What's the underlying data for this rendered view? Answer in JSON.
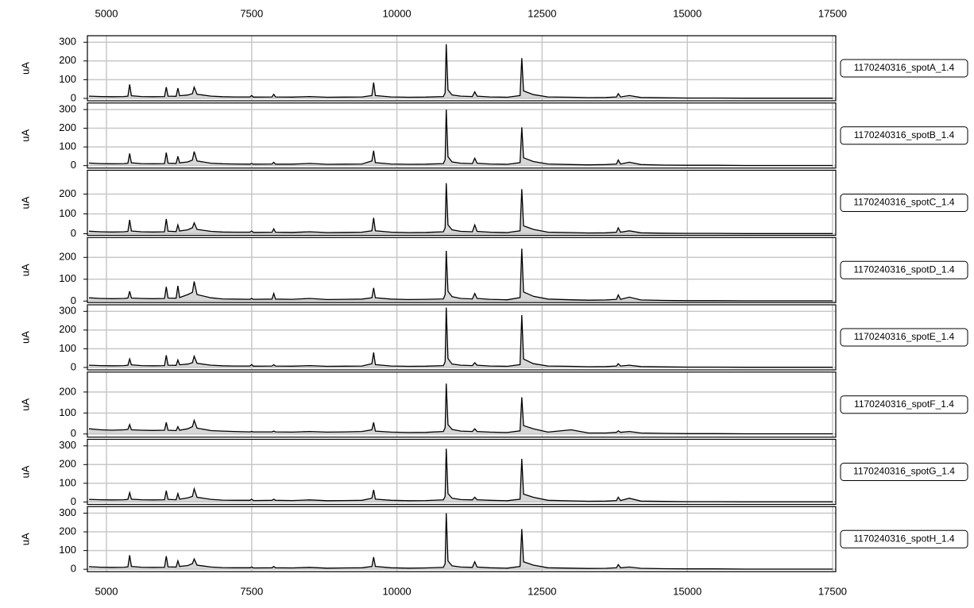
{
  "chart_data": {
    "type": "line",
    "ylabel": "uA",
    "grid": true,
    "color": "#000000",
    "fill": "#bdbdbd",
    "xlim": [
      4672,
      17555
    ],
    "xticks": [
      5000,
      7500,
      10000,
      12500,
      15000,
      17500
    ],
    "x": [
      4700,
      4900,
      5100,
      5300,
      5370,
      5400,
      5430,
      5600,
      5800,
      6000,
      6030,
      6060,
      6200,
      6230,
      6260,
      6400,
      6480,
      6510,
      6560,
      6800,
      7000,
      7200,
      7470,
      7500,
      7530,
      7850,
      7880,
      7910,
      8200,
      8500,
      8800,
      9100,
      9400,
      9570,
      9600,
      9630,
      9900,
      10200,
      10500,
      10800,
      10830,
      10850,
      10880,
      10950,
      11100,
      11300,
      11340,
      11380,
      11600,
      11900,
      12120,
      12150,
      12180,
      12350,
      12600,
      13000,
      13300,
      13600,
      13780,
      13810,
      13850,
      14000,
      14200,
      14600,
      15000,
      15500,
      16000,
      16500,
      17000,
      17500
    ],
    "series": [
      {
        "name": "1170240316_spotA_1.4",
        "ylim": [
          -13,
          335
        ],
        "yticks": [
          0,
          100,
          200,
          300
        ],
        "values": [
          12,
          10,
          9,
          10,
          12,
          75,
          14,
          10,
          9,
          10,
          60,
          12,
          11,
          55,
          14,
          18,
          25,
          60,
          22,
          12,
          9,
          8,
          8,
          15,
          7,
          8,
          22,
          8,
          7,
          10,
          6,
          7,
          8,
          15,
          85,
          15,
          8,
          6,
          7,
          10,
          30,
          290,
          45,
          18,
          12,
          10,
          35,
          12,
          8,
          6,
          15,
          215,
          40,
          20,
          8,
          6,
          4,
          5,
          8,
          25,
          8,
          15,
          5,
          3,
          2,
          2,
          1,
          1,
          1,
          1
        ]
      },
      {
        "name": "1170240316_spotB_1.4",
        "ylim": [
          -13,
          335
        ],
        "yticks": [
          0,
          100,
          200,
          300
        ],
        "values": [
          14,
          11,
          10,
          11,
          13,
          65,
          15,
          11,
          10,
          11,
          70,
          13,
          12,
          50,
          15,
          20,
          30,
          75,
          25,
          13,
          10,
          9,
          8,
          12,
          8,
          9,
          18,
          8,
          8,
          12,
          7,
          8,
          9,
          25,
          80,
          16,
          9,
          7,
          8,
          11,
          32,
          300,
          48,
          20,
          13,
          11,
          40,
          13,
          9,
          7,
          16,
          205,
          42,
          22,
          9,
          6,
          4,
          6,
          9,
          30,
          9,
          18,
          6,
          3,
          2,
          2,
          1,
          1,
          1,
          1
        ]
      },
      {
        "name": "1170240316_spotC_1.4",
        "ylim": [
          -8,
          320
        ],
        "yticks": [
          0,
          100,
          200
        ],
        "values": [
          13,
          10,
          9,
          10,
          12,
          70,
          14,
          10,
          9,
          10,
          75,
          13,
          11,
          45,
          14,
          20,
          30,
          55,
          22,
          12,
          9,
          8,
          8,
          14,
          7,
          8,
          25,
          8,
          7,
          10,
          6,
          7,
          8,
          15,
          80,
          15,
          8,
          6,
          7,
          10,
          30,
          255,
          45,
          20,
          12,
          10,
          45,
          12,
          8,
          6,
          15,
          225,
          40,
          22,
          8,
          6,
          4,
          5,
          8,
          30,
          8,
          15,
          5,
          3,
          2,
          2,
          1,
          1,
          1,
          1
        ]
      },
      {
        "name": "1170240316_spotD_1.4",
        "ylim": [
          -7,
          291
        ],
        "yticks": [
          0,
          100,
          200
        ],
        "values": [
          15,
          12,
          11,
          12,
          14,
          45,
          14,
          12,
          11,
          12,
          65,
          14,
          13,
          70,
          16,
          30,
          40,
          90,
          30,
          15,
          10,
          9,
          8,
          12,
          8,
          9,
          35,
          9,
          8,
          12,
          7,
          8,
          9,
          15,
          60,
          15,
          9,
          7,
          8,
          10,
          30,
          230,
          45,
          20,
          12,
          10,
          35,
          12,
          8,
          6,
          16,
          240,
          42,
          22,
          9,
          6,
          4,
          5,
          8,
          28,
          8,
          18,
          5,
          3,
          2,
          2,
          1,
          1,
          1,
          1
        ]
      },
      {
        "name": "1170240316_spotE_1.4",
        "ylim": [
          -13,
          335
        ],
        "yticks": [
          0,
          100,
          200,
          300
        ],
        "values": [
          12,
          10,
          9,
          10,
          12,
          45,
          14,
          10,
          9,
          10,
          65,
          12,
          11,
          40,
          14,
          18,
          25,
          60,
          22,
          12,
          9,
          8,
          8,
          15,
          7,
          8,
          15,
          8,
          7,
          10,
          6,
          7,
          8,
          20,
          80,
          15,
          8,
          6,
          7,
          10,
          30,
          320,
          48,
          18,
          12,
          10,
          25,
          12,
          8,
          6,
          15,
          280,
          45,
          20,
          8,
          6,
          4,
          5,
          8,
          20,
          8,
          12,
          5,
          3,
          2,
          2,
          1,
          1,
          1,
          1
        ]
      },
      {
        "name": "1170240316_spotF_1.4",
        "ylim": [
          -15,
          295
        ],
        "yticks": [
          0,
          100,
          200
        ],
        "values": [
          25,
          20,
          18,
          20,
          22,
          45,
          20,
          18,
          17,
          18,
          55,
          18,
          16,
          35,
          18,
          25,
          35,
          65,
          28,
          16,
          14,
          12,
          10,
          12,
          10,
          10,
          14,
          10,
          9,
          12,
          9,
          10,
          12,
          20,
          55,
          14,
          9,
          7,
          8,
          12,
          30,
          240,
          45,
          22,
          14,
          12,
          25,
          12,
          9,
          7,
          15,
          175,
          40,
          25,
          9,
          20,
          5,
          5,
          8,
          15,
          8,
          12,
          5,
          3,
          2,
          2,
          1,
          1,
          1,
          1
        ]
      },
      {
        "name": "1170240316_spotG_1.4",
        "ylim": [
          -13,
          335
        ],
        "yticks": [
          0,
          100,
          200,
          300
        ],
        "values": [
          14,
          12,
          11,
          12,
          14,
          50,
          15,
          12,
          11,
          12,
          60,
          14,
          12,
          45,
          15,
          22,
          30,
          70,
          25,
          14,
          10,
          9,
          9,
          15,
          8,
          9,
          15,
          9,
          8,
          11,
          7,
          8,
          9,
          20,
          65,
          15,
          9,
          7,
          8,
          11,
          30,
          285,
          45,
          20,
          13,
          11,
          25,
          12,
          9,
          7,
          15,
          230,
          42,
          25,
          9,
          6,
          4,
          5,
          8,
          25,
          8,
          20,
          5,
          3,
          2,
          2,
          1,
          1,
          1,
          1
        ]
      },
      {
        "name": "1170240316_spotH_1.4",
        "ylim": [
          -13,
          335
        ],
        "yticks": [
          0,
          100,
          200,
          300
        ],
        "values": [
          14,
          11,
          10,
          11,
          13,
          75,
          15,
          11,
          10,
          11,
          70,
          13,
          12,
          45,
          15,
          20,
          30,
          55,
          22,
          12,
          9,
          8,
          8,
          12,
          7,
          8,
          15,
          8,
          7,
          10,
          6,
          7,
          8,
          15,
          65,
          15,
          8,
          6,
          7,
          10,
          30,
          300,
          45,
          18,
          12,
          10,
          40,
          12,
          8,
          6,
          15,
          215,
          40,
          22,
          8,
          6,
          4,
          5,
          8,
          25,
          8,
          12,
          5,
          3,
          2,
          2,
          1,
          1,
          1,
          1
        ]
      }
    ]
  }
}
